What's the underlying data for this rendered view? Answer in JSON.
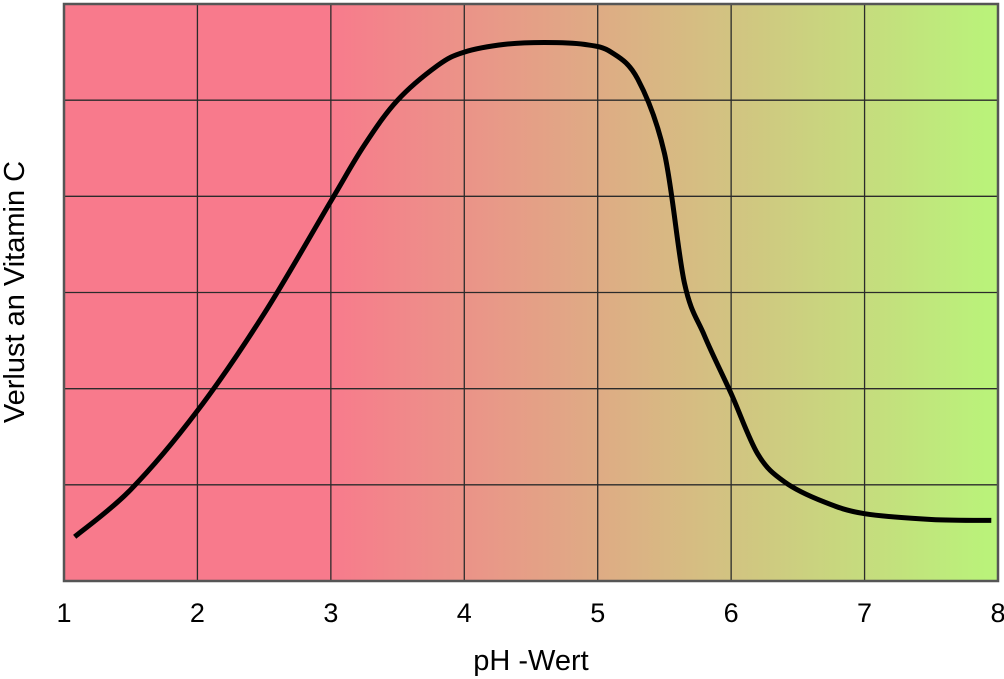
{
  "chart_data": {
    "type": "line",
    "xlabel": "pH -Wert",
    "ylabel": "Verlust an Vitamin C",
    "xlim": [
      1,
      8
    ],
    "ylim": [
      0,
      6
    ],
    "x_ticks": [
      1,
      2,
      3,
      4,
      5,
      6,
      7,
      8
    ],
    "x_tick_labels": [
      "1",
      "2",
      "3",
      "4",
      "5",
      "6",
      "7",
      "8"
    ],
    "y_gridlines": [
      1,
      2,
      3,
      4,
      5
    ],
    "grid": true,
    "legend": "none",
    "background_gradient": [
      "#f87a8c",
      "#f87a8c",
      "#b9f47a"
    ],
    "line_color": "#000000",
    "series": [
      {
        "x": [
          1.08,
          1.5,
          2.0,
          2.5,
          3.0,
          3.25,
          3.5,
          3.8,
          4.0,
          4.3,
          4.6,
          4.9,
          5.1,
          5.3,
          5.5,
          5.65,
          5.8,
          6.0,
          6.2,
          6.4,
          6.7,
          7.0,
          7.5,
          7.95
        ],
        "y": [
          0.46,
          0.95,
          1.77,
          2.78,
          3.95,
          4.53,
          5.0,
          5.36,
          5.5,
          5.58,
          5.6,
          5.58,
          5.5,
          5.22,
          4.45,
          3.1,
          2.55,
          1.95,
          1.32,
          1.03,
          0.82,
          0.7,
          0.64,
          0.63
        ]
      }
    ]
  }
}
